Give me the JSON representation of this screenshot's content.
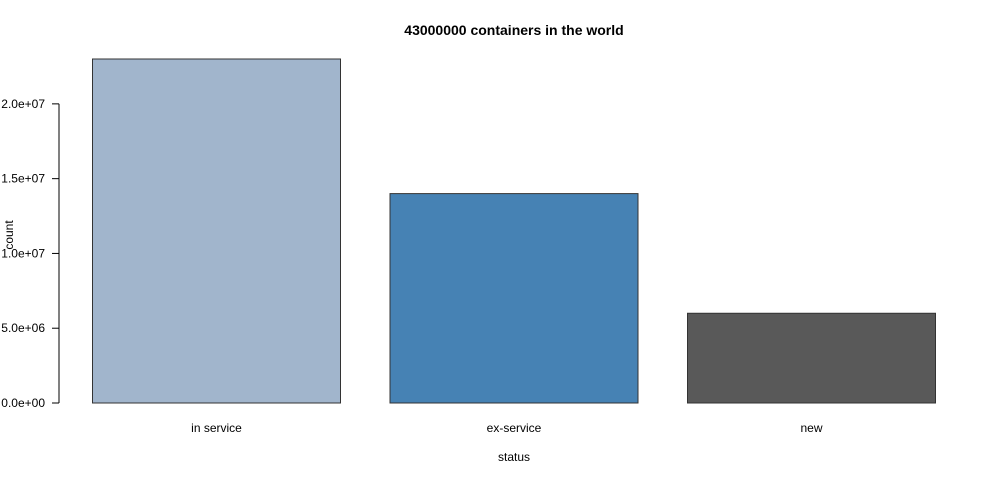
{
  "chart_data": {
    "type": "bar",
    "title": "43000000 containers in the world",
    "xlabel": "status",
    "ylabel": "count",
    "categories": [
      "in service",
      "ex-service",
      "new"
    ],
    "values": [
      23000000,
      14000000,
      6000000
    ],
    "colors": [
      "#a1b5cc",
      "#4682b4",
      "#595959"
    ],
    "ylim": [
      0,
      23000000
    ],
    "yticks": [
      0,
      5000000,
      10000000,
      15000000,
      20000000
    ],
    "ytick_labels": [
      "0.0e+00",
      "5.0e+06",
      "1.0e+07",
      "1.5e+07",
      "2.0e+07"
    ],
    "grid": false,
    "legend": "none"
  }
}
